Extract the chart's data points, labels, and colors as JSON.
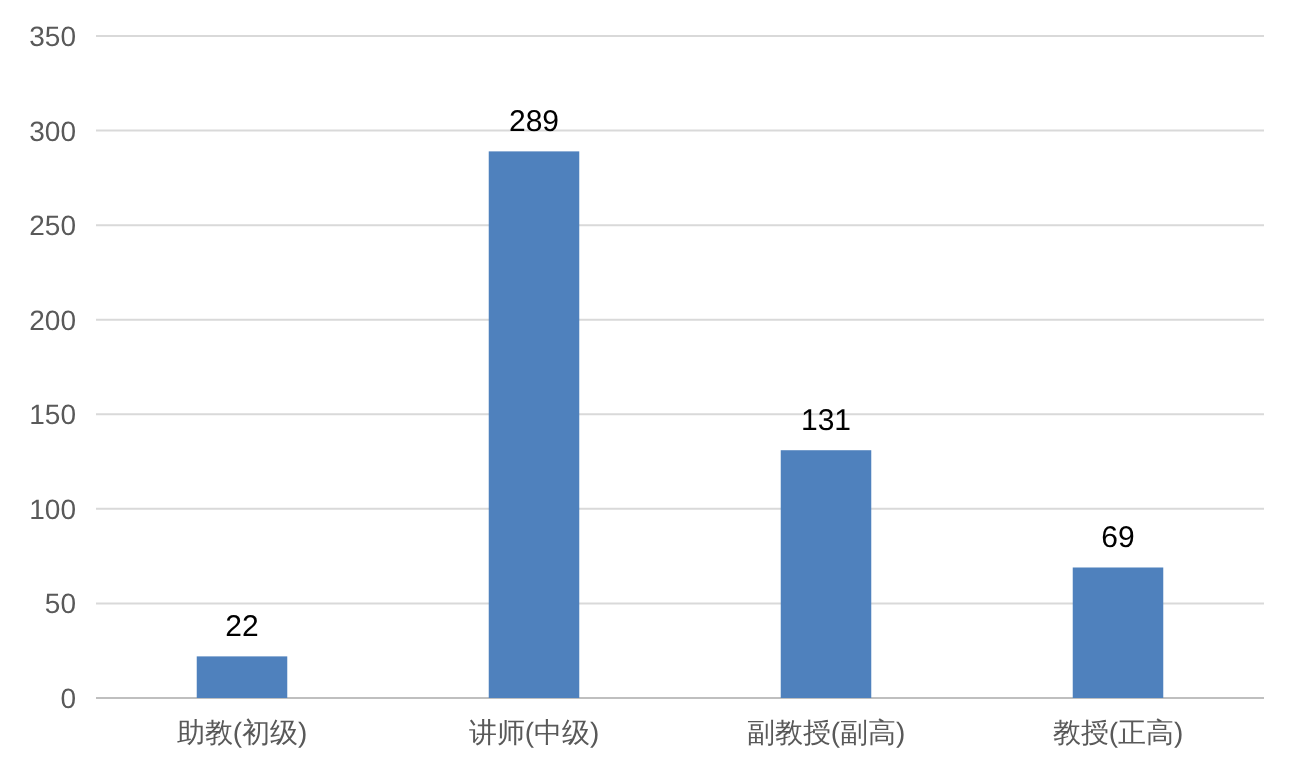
{
  "chart_data": {
    "type": "bar",
    "categories": [
      "助教(初级)",
      "讲师(中级)",
      "副教授(副高)",
      "教授(正高)"
    ],
    "values": [
      22,
      289,
      131,
      69
    ],
    "color": "#4f81bd",
    "ylim": [
      0,
      350
    ],
    "yticks": [
      0,
      50,
      100,
      150,
      200,
      250,
      300,
      350
    ],
    "grid": "y",
    "data_labels": true
  }
}
